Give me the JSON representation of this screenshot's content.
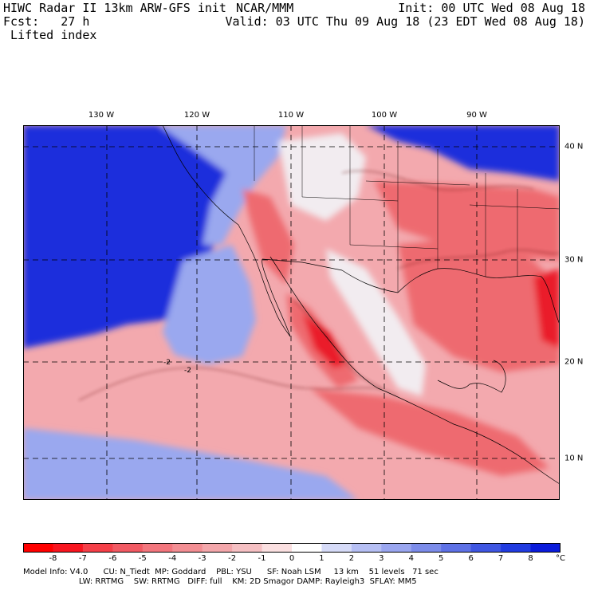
{
  "header": {
    "left_line1": "HIWC Radar II 13km ARW-GFS init",
    "left_line2": "Fcst:   27 h",
    "left_line3": " Lifted index",
    "center_line1": "NCAR/MMM",
    "right_line1": "Init: 00 UTC Wed 08 Aug 18",
    "right_line2": "Valid: 03 UTC Thu 09 Aug 18 (23 EDT Wed 08 Aug 18)"
  },
  "map": {
    "lon_labels": [
      "130 W",
      "120 W",
      "110 W",
      "100 W",
      "90 W"
    ],
    "lat_labels": [
      "40 N",
      "30 N",
      "20 N",
      "10 N"
    ],
    "contour_label": "-2",
    "colors": {
      "ocean_stable": "#1a2fdc",
      "stable_light": "#9aa8ef",
      "neutral": "#f2ecf0",
      "unstable_light": "#f3a9ae",
      "unstable": "#ee6a70",
      "very_unstable": "#ea1e2a",
      "gridline": "#000000"
    }
  },
  "colorbar": {
    "ticks": [
      "-8",
      "-7",
      "-6",
      "-5",
      "-4",
      "-3",
      "-2",
      "-1",
      "0",
      "1",
      "2",
      "3",
      "4",
      "5",
      "6",
      "7",
      "8"
    ],
    "unit": "°C",
    "colors": [
      "#ff0000",
      "#f8151f",
      "#f53f48",
      "#f25a63",
      "#f3767d",
      "#f38e93",
      "#f4a7ab",
      "#f6c0c3",
      "#fbe0e1",
      "#ffffff",
      "#d6dbf8",
      "#b6bff4",
      "#9aa6f0",
      "#7c8cea",
      "#5e71e6",
      "#3f56e2",
      "#213be0",
      "#0a1bdb"
    ]
  },
  "footer": {
    "line1": "Model Info: V4.0      CU: N_Tiedt  MP: Goddard    PBL: YSU      SF: Noah LSM     13 km    51 levels   71 sec",
    "line2": "                      LW: RRTMG    SW: RRTMG   DIFF: full    KM: 2D Smagor DAMP: Rayleigh3  SFLAY: MM5"
  }
}
